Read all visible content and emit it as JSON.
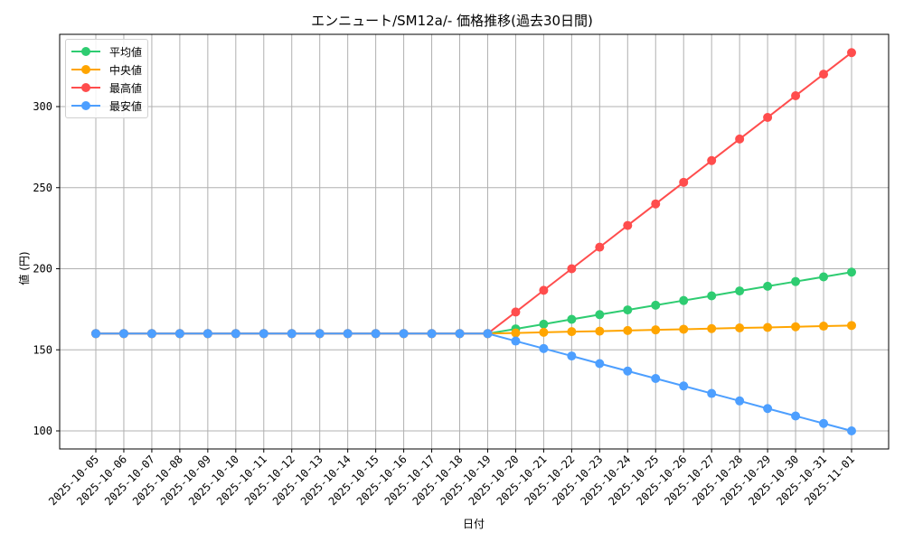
{
  "chart_data": {
    "type": "line",
    "title": "エンニュート/SM12a/- 価格推移(過去30日間)",
    "xlabel": "日付",
    "ylabel": "値 (円)",
    "ylim": [
      88,
      342
    ],
    "yticks": [
      100,
      150,
      200,
      250,
      300
    ],
    "grid": true,
    "legend_position": "upper left",
    "x": [
      "2025-10-05",
      "2025-10-06",
      "2025-10-07",
      "2025-10-08",
      "2025-10-09",
      "2025-10-10",
      "2025-10-11",
      "2025-10-12",
      "2025-10-13",
      "2025-10-14",
      "2025-10-15",
      "2025-10-16",
      "2025-10-17",
      "2025-10-18",
      "2025-10-19",
      "2025-10-20",
      "2025-10-21",
      "2025-10-22",
      "2025-10-23",
      "2025-10-24",
      "2025-10-25",
      "2025-10-26",
      "2025-10-27",
      "2025-10-28",
      "2025-10-29",
      "2025-10-30",
      "2025-10-31",
      "2025-11-01"
    ],
    "series": [
      {
        "name": "平均値",
        "color": "#2ecc71",
        "values": [
          160,
          160,
          160,
          160,
          160,
          160,
          160,
          160,
          160,
          160,
          160,
          160,
          160,
          160,
          160,
          162.9,
          165.8,
          168.8,
          171.7,
          174.6,
          177.5,
          180.4,
          183.3,
          186.3,
          189.2,
          192.1,
          195.0,
          197.9
        ]
      },
      {
        "name": "中央値",
        "color": "#ffa500",
        "values": [
          160,
          160,
          160,
          160,
          160,
          160,
          160,
          160,
          160,
          160,
          160,
          160,
          160,
          160,
          160,
          160.4,
          160.8,
          161.2,
          161.5,
          161.9,
          162.3,
          162.7,
          163.1,
          163.5,
          163.8,
          164.2,
          164.6,
          165.0
        ]
      },
      {
        "name": "最高値",
        "color": "#ff4d4d",
        "values": [
          160,
          160,
          160,
          160,
          160,
          160,
          160,
          160,
          160,
          160,
          160,
          160,
          160,
          160,
          160,
          173.3,
          186.7,
          200.0,
          213.3,
          226.7,
          240.0,
          253.3,
          266.7,
          280.0,
          293.3,
          306.7,
          320.0,
          333.3
        ]
      },
      {
        "name": "最安値",
        "color": "#4d9fff",
        "values": [
          160,
          160,
          160,
          160,
          160,
          160,
          160,
          160,
          160,
          160,
          160,
          160,
          160,
          160,
          160,
          155.4,
          150.8,
          146.2,
          141.5,
          136.9,
          132.3,
          127.7,
          123.1,
          118.5,
          113.8,
          109.2,
          104.6,
          100.0
        ]
      }
    ]
  },
  "colors": {
    "grid": "#b0b0b0",
    "axis": "#000000"
  }
}
